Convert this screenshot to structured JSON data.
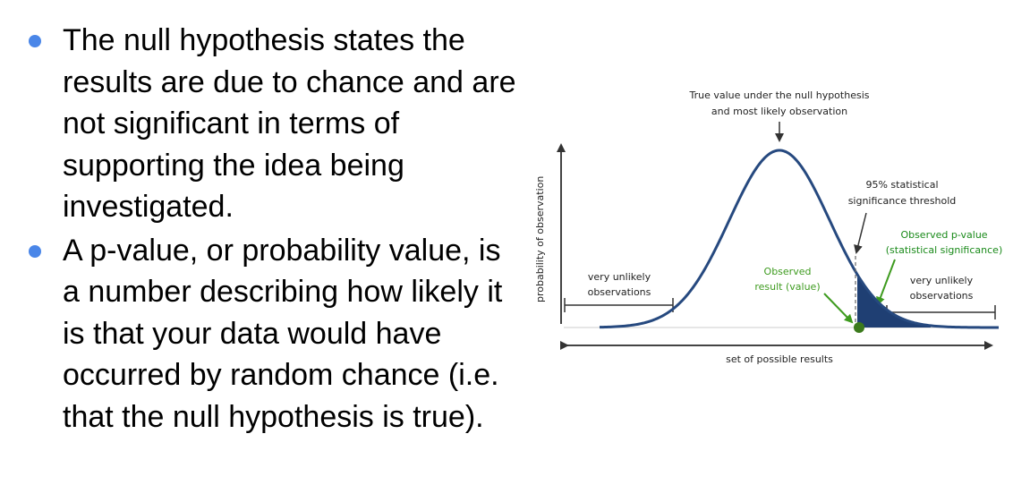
{
  "colors": {
    "bullet": "#4a86e8",
    "curve": "#26497f",
    "tail_fill": "#1f3f73",
    "green": "#3e9b1f",
    "axis": "#333333"
  },
  "bullets": [
    {
      "text": "The null hypothesis states the results are due to chance and are not significant in terms of supporting the idea being investigated."
    },
    {
      "text": "A p-value, or probability value, is a number describing how likely it is that your data would have occurred by random chance (i.e. that the null hypothesis is true)."
    }
  ],
  "diagram": {
    "top_label_line1": "True value under the null hypothesis",
    "top_label_line2": "and most likely observation",
    "threshold_line1": "95% statistical",
    "threshold_line2": "significance threshold",
    "pvalue_line1": "Observed p-value",
    "pvalue_line2": "(statistical significance)",
    "left_range_line1": "very unlikely",
    "left_range_line2": "observations",
    "right_range_line1": "very unlikely",
    "right_range_line2": "observations",
    "observed_line1": "Observed",
    "observed_line2": "result (value)",
    "y_axis_label": "probability of observation",
    "x_axis_label": "set of possible results"
  }
}
